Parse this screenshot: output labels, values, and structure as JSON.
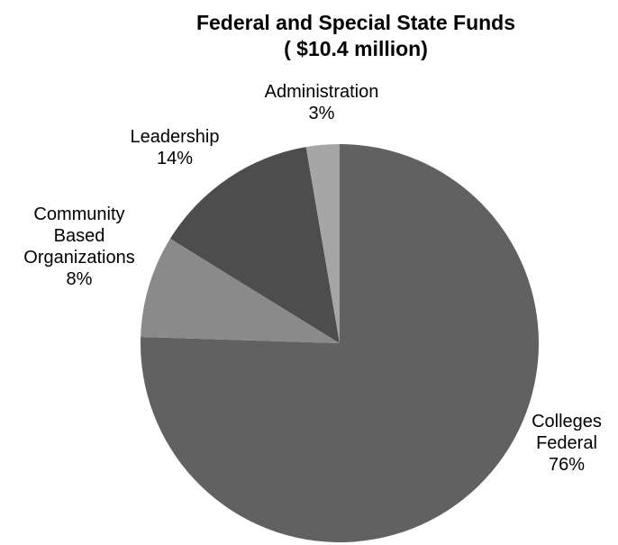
{
  "chart_data": {
    "type": "pie",
    "title": "Federal and Special State Funds",
    "subtitle": "( $10.4 million)",
    "slices": [
      {
        "label_lines": [
          "Colleges",
          "Federal"
        ],
        "pct_label": "76%",
        "value": 75.5,
        "color": "#616161"
      },
      {
        "label_lines": [
          "Community",
          "Based",
          "Organizations"
        ],
        "pct_label": "8%",
        "value": 8.3,
        "color": "#8a8a8a"
      },
      {
        "label_lines": [
          "Leadership"
        ],
        "pct_label": "14%",
        "value": 13.5,
        "color": "#4d4d4d"
      },
      {
        "label_lines": [
          "Administration"
        ],
        "pct_label": "3%",
        "value": 2.7,
        "color": "#a6a6a6"
      }
    ],
    "start_position": "top",
    "direction": "clockwise",
    "legend": "none"
  }
}
